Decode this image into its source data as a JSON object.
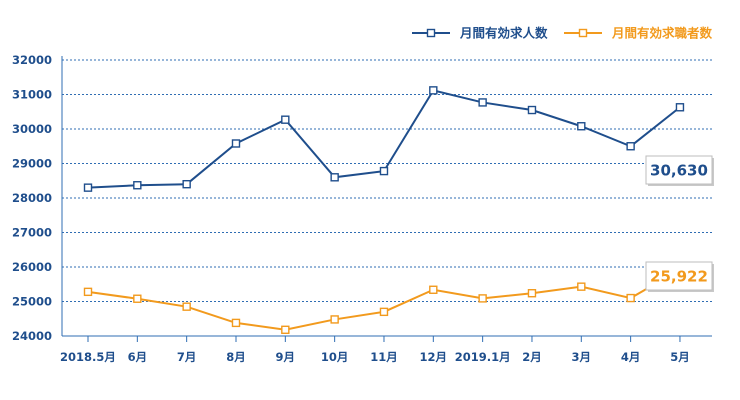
{
  "chart_data": {
    "type": "line",
    "categories": [
      "2018.5月",
      "6月",
      "7月",
      "8月",
      "9月",
      "10月",
      "11月",
      "12月",
      "2019.1月",
      "2月",
      "3月",
      "4月",
      "5月"
    ],
    "yticks": [
      "32000",
      "31000",
      "30000",
      "29000",
      "28000",
      "27000",
      "26000",
      "25000",
      "24000"
    ],
    "ylim": [
      24000,
      32000
    ],
    "grid": true,
    "legend_position": "top-right",
    "series": [
      {
        "name": "月間有効求人数",
        "color": "#1f4e8c",
        "values": [
          28300,
          28370,
          28400,
          29580,
          30270,
          28600,
          28780,
          31120,
          30770,
          30550,
          30080,
          29500,
          30630
        ]
      },
      {
        "name": "月間有効求職者数",
        "color": "#f29a1d",
        "values": [
          25280,
          25080,
          24850,
          24380,
          24180,
          24480,
          24700,
          25340,
          25090,
          25240,
          25430,
          25100,
          25922
        ]
      }
    ],
    "callouts": [
      {
        "series": 0,
        "text": "30,630"
      },
      {
        "series": 1,
        "text": "25,922"
      }
    ]
  }
}
